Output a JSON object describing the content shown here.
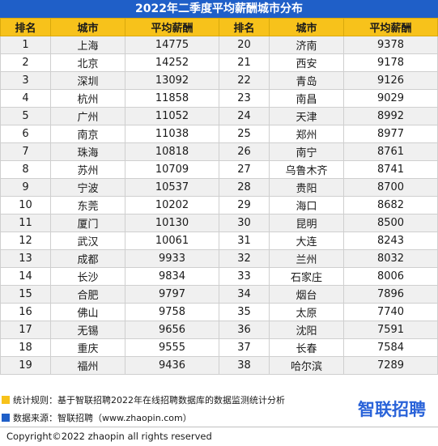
{
  "title": "2022年二季度平均薪酬城市分布",
  "headers": {
    "rank": "排名",
    "city": "城市",
    "salary": "平均薪酬"
  },
  "rows": [
    {
      "l_rank": "1",
      "l_city": "上海",
      "l_salary": "14775",
      "r_rank": "20",
      "r_city": "济南",
      "r_salary": "9378"
    },
    {
      "l_rank": "2",
      "l_city": "北京",
      "l_salary": "14252",
      "r_rank": "21",
      "r_city": "西安",
      "r_salary": "9178"
    },
    {
      "l_rank": "3",
      "l_city": "深圳",
      "l_salary": "13092",
      "r_rank": "22",
      "r_city": "青岛",
      "r_salary": "9126"
    },
    {
      "l_rank": "4",
      "l_city": "杭州",
      "l_salary": "11858",
      "r_rank": "23",
      "r_city": "南昌",
      "r_salary": "9029"
    },
    {
      "l_rank": "5",
      "l_city": "广州",
      "l_salary": "11052",
      "r_rank": "24",
      "r_city": "天津",
      "r_salary": "8992"
    },
    {
      "l_rank": "6",
      "l_city": "南京",
      "l_salary": "11038",
      "r_rank": "25",
      "r_city": "郑州",
      "r_salary": "8977"
    },
    {
      "l_rank": "7",
      "l_city": "珠海",
      "l_salary": "10818",
      "r_rank": "26",
      "r_city": "南宁",
      "r_salary": "8761"
    },
    {
      "l_rank": "8",
      "l_city": "苏州",
      "l_salary": "10709",
      "r_rank": "27",
      "r_city": "乌鲁木齐",
      "r_salary": "8741"
    },
    {
      "l_rank": "9",
      "l_city": "宁波",
      "l_salary": "10537",
      "r_rank": "28",
      "r_city": "贵阳",
      "r_salary": "8700"
    },
    {
      "l_rank": "10",
      "l_city": "东莞",
      "l_salary": "10202",
      "r_rank": "29",
      "r_city": "海口",
      "r_salary": "8682"
    },
    {
      "l_rank": "11",
      "l_city": "厦门",
      "l_salary": "10130",
      "r_rank": "30",
      "r_city": "昆明",
      "r_salary": "8500"
    },
    {
      "l_rank": "12",
      "l_city": "武汉",
      "l_salary": "10061",
      "r_rank": "31",
      "r_city": "大连",
      "r_salary": "8243"
    },
    {
      "l_rank": "13",
      "l_city": "成都",
      "l_salary": "9933",
      "r_rank": "32",
      "r_city": "兰州",
      "r_salary": "8032"
    },
    {
      "l_rank": "14",
      "l_city": "长沙",
      "l_salary": "9834",
      "r_rank": "33",
      "r_city": "石家庄",
      "r_salary": "8006"
    },
    {
      "l_rank": "15",
      "l_city": "合肥",
      "l_salary": "9797",
      "r_rank": "34",
      "r_city": "烟台",
      "r_salary": "7896"
    },
    {
      "l_rank": "16",
      "l_city": "佛山",
      "l_salary": "9758",
      "r_rank": "35",
      "r_city": "太原",
      "r_salary": "7740"
    },
    {
      "l_rank": "17",
      "l_city": "无锡",
      "l_salary": "9656",
      "r_rank": "36",
      "r_city": "沈阳",
      "r_salary": "7591"
    },
    {
      "l_rank": "18",
      "l_city": "重庆",
      "l_salary": "9555",
      "r_rank": "37",
      "r_city": "长春",
      "r_salary": "7584"
    },
    {
      "l_rank": "19",
      "l_city": "福州",
      "l_salary": "9436",
      "r_rank": "38",
      "r_city": "哈尔滨",
      "r_salary": "7289"
    }
  ],
  "notes": {
    "rule": "统计规则：基于智联招聘2022年在线招聘数据库的数据监测统计分析",
    "source": "数据来源：智联招聘（www.zhaopin.com）"
  },
  "logo_text": "智联招聘",
  "copyright": "Copyright©2022 zhaopin all rights reserved",
  "colors": {
    "title_bar": "#1f5fc8",
    "header_row": "#f7c21b",
    "stripe": "#f0f0f0",
    "logo": "#2a63d9"
  }
}
